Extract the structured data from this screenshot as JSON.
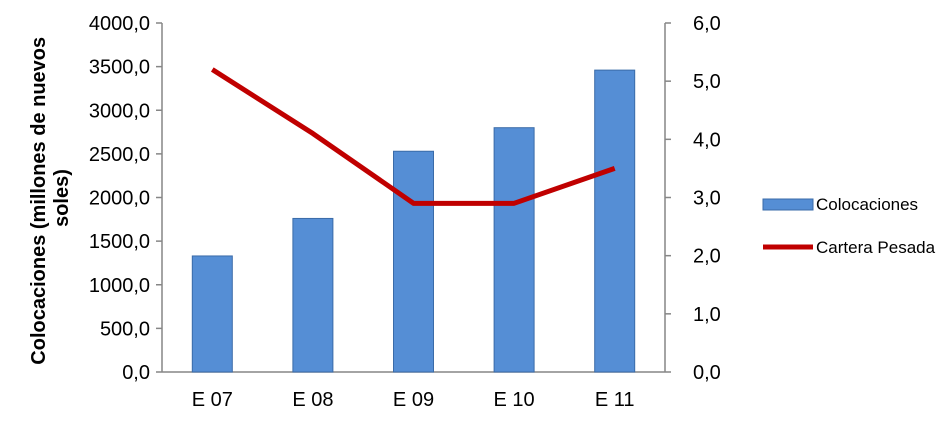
{
  "chart_data": {
    "type": "bar+line",
    "title": "",
    "categories": [
      "E 07",
      "E 08",
      "E 09",
      "E 10",
      "E 11"
    ],
    "series": [
      {
        "name": "Colocaciones",
        "type": "bar",
        "axis": "left",
        "color": "#558ED5",
        "values": [
          1330,
          1760,
          2530,
          2800,
          3460
        ]
      },
      {
        "name": "Cartera Pesada",
        "type": "line",
        "axis": "right",
        "color": "#C00000",
        "values": [
          5.2,
          4.1,
          2.9,
          2.9,
          3.5
        ]
      }
    ],
    "ylabel_left_lines": [
      "Colocaciones (millones de nuevos",
      "soles)"
    ],
    "ylim_left": [
      0,
      4000
    ],
    "yticks_left": [
      "0,0",
      "500,0",
      "1000,0",
      "1500,0",
      "2000,0",
      "2500,0",
      "3000,0",
      "3500,0",
      "4000,0"
    ],
    "ylim_right": [
      0,
      6
    ],
    "yticks_right": [
      "0,0",
      "1,0",
      "2,0",
      "3,0",
      "4,0",
      "5,0",
      "6,0"
    ],
    "legend_position": "right",
    "grid": false
  }
}
